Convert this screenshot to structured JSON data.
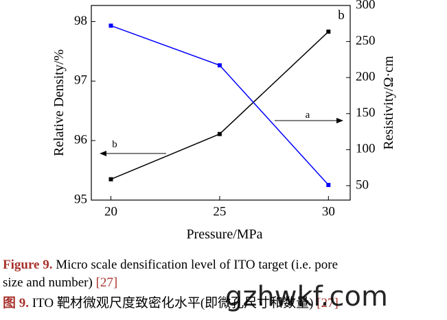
{
  "chart_data": {
    "type": "line",
    "x_label": "Pressure/MPa",
    "y_label": "Relative Density/%",
    "y2_label": "Resistivity/Ω·cm",
    "x": [
      20,
      25,
      30
    ],
    "series": [
      {
        "color": "#000000",
        "values": [
          95.35,
          96.11,
          97.83
        ]
      },
      {
        "color": "#0000ff",
        "values": [
          272,
          217,
          51
        ],
        "axis": "y2"
      }
    ],
    "xlim": [
      19.1,
      31
    ],
    "xticks": [
      20,
      25,
      30
    ],
    "ylim": [
      95,
      98.27
    ],
    "yticks": [
      95,
      96,
      97,
      98
    ],
    "y2lim": [
      30,
      300
    ],
    "y2ticks": [
      50,
      100,
      150,
      200,
      250,
      300
    ],
    "annotations": [
      "b",
      "a",
      "b"
    ]
  },
  "caption": {
    "label": "Figure 9.",
    "lines": [
      "Micro scale densification level of ITO target (i.e. pore",
      "size and number)"
    ],
    "ref": "[27]",
    "cn_label": "图 9.",
    "cn_text": "ITO 靶材微观尺度致密化水平(即微孔尺寸和数量)",
    "cn_ref": "[27]"
  },
  "watermark": "gzhwkf.com"
}
